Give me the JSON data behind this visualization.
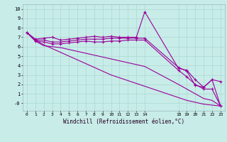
{
  "xlabel": "Windchill (Refroidissement éolien,°C)",
  "background_color": "#c8ece8",
  "line_color": "#990099",
  "grid_color": "#aad8d4",
  "x_vals": [
    0,
    1,
    2,
    3,
    4,
    5,
    6,
    7,
    8,
    9,
    10,
    11,
    12,
    13,
    14,
    18,
    19,
    20,
    21,
    22,
    23
  ],
  "line1": [
    7.5,
    6.8,
    6.9,
    7.0,
    6.7,
    6.8,
    6.9,
    7.0,
    7.1,
    7.0,
    7.1,
    7.0,
    7.0,
    7.0,
    9.7,
    3.7,
    3.5,
    2.5,
    1.7,
    2.5,
    2.3
  ],
  "line2": [
    7.5,
    6.7,
    6.7,
    6.5,
    6.5,
    6.6,
    6.7,
    6.8,
    6.8,
    6.8,
    6.9,
    6.9,
    6.9,
    6.9,
    6.9,
    3.8,
    3.4,
    1.9,
    1.7,
    2.5,
    -0.3
  ],
  "line3": [
    7.5,
    6.6,
    6.5,
    6.3,
    6.3,
    6.4,
    6.5,
    6.6,
    6.5,
    6.5,
    6.6,
    6.6,
    6.7,
    6.7,
    6.7,
    3.5,
    2.8,
    2.0,
    1.5,
    1.5,
    -0.3
  ],
  "line4": [
    7.5,
    6.6,
    6.1,
    6.0,
    5.9,
    5.7,
    5.5,
    5.3,
    5.1,
    4.9,
    4.7,
    4.5,
    4.3,
    4.1,
    3.9,
    2.0,
    1.5,
    1.0,
    0.5,
    0.3,
    -0.3
  ],
  "line5": [
    7.5,
    6.7,
    6.2,
    5.8,
    5.4,
    5.0,
    4.6,
    4.2,
    3.8,
    3.4,
    3.0,
    2.7,
    2.4,
    2.1,
    1.8,
    0.6,
    0.3,
    0.1,
    -0.1,
    -0.2,
    -0.3
  ],
  "lines_with_markers": [
    0,
    1,
    2
  ],
  "xticks": [
    0,
    1,
    2,
    3,
    4,
    5,
    6,
    7,
    8,
    9,
    10,
    11,
    12,
    13,
    14,
    18,
    19,
    20,
    21,
    22,
    23
  ],
  "yticks": [
    0,
    1,
    2,
    3,
    4,
    5,
    6,
    7,
    8,
    9,
    10
  ],
  "xlim": [
    -0.5,
    23.5
  ],
  "ylim": [
    -0.8,
    10.5
  ]
}
